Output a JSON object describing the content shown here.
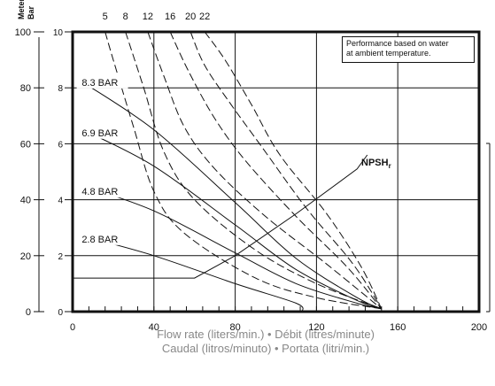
{
  "chart_data": {
    "type": "line",
    "xlabel": "Flow rate (liters/min.) • Débit (litres/minute)",
    "xlabel_2": "Caudal (litros/minuto) • Portata (litri/min.)",
    "left_axis_title": "Meters",
    "bar_axis_title": "Bar",
    "xlim": [
      0,
      200
    ],
    "ylim": [
      0,
      100
    ],
    "bar_lim": [
      0,
      10
    ],
    "x_ticks": [
      "0",
      "40",
      "80",
      "120",
      "160",
      "200"
    ],
    "y_ticks": [
      "0",
      "20",
      "40",
      "60",
      "80",
      "100"
    ],
    "bar_ticks": [
      "0",
      "2",
      "4",
      "6",
      "8",
      "10"
    ],
    "grid": true,
    "note": [
      "Performance based on water",
      "at ambient temperature."
    ],
    "series": [
      {
        "name": "8.3 BAR",
        "style": "solid",
        "label_y": 82,
        "points": [
          [
            5,
            82
          ],
          [
            40,
            65
          ],
          [
            80,
            39
          ],
          [
            110,
            19
          ],
          [
            140,
            5
          ],
          [
            152,
            1
          ]
        ]
      },
      {
        "name": "6.9 BAR",
        "style": "solid",
        "label_y": 64,
        "points": [
          [
            5,
            65
          ],
          [
            40,
            52
          ],
          [
            80,
            31
          ],
          [
            110,
            15
          ],
          [
            140,
            4
          ],
          [
            152,
            1
          ]
        ]
      },
      {
        "name": "4.8 BAR",
        "style": "solid",
        "label_y": 43,
        "points": [
          [
            5,
            45
          ],
          [
            40,
            36
          ],
          [
            80,
            21
          ],
          [
            110,
            10
          ],
          [
            140,
            3
          ],
          [
            152,
            1
          ]
        ]
      },
      {
        "name": "2.8 BAR",
        "style": "solid",
        "label_y": 26,
        "points": [
          [
            5,
            27
          ],
          [
            40,
            20
          ],
          [
            80,
            10
          ],
          [
            110,
            3
          ],
          [
            113,
            0
          ]
        ]
      },
      {
        "name": "NPSHr",
        "style": "solid",
        "points": [
          [
            0,
            12
          ],
          [
            60,
            12
          ],
          [
            80,
            20
          ],
          [
            110,
            35
          ],
          [
            140,
            51
          ],
          [
            145,
            56
          ]
        ]
      }
    ],
    "air_consumption_curves": [
      {
        "name": "5",
        "style": "dashed",
        "points": [
          [
            16,
            100
          ],
          [
            20,
            90
          ],
          [
            30,
            66
          ],
          [
            40,
            43
          ],
          [
            55,
            28
          ],
          [
            90,
            12
          ],
          [
            120,
            5
          ],
          [
            152,
            1
          ]
        ]
      },
      {
        "name": "8",
        "style": "dashed",
        "points": [
          [
            26,
            100
          ],
          [
            35,
            80
          ],
          [
            45,
            57
          ],
          [
            60,
            40
          ],
          [
            90,
            22
          ],
          [
            120,
            10
          ],
          [
            152,
            1
          ]
        ]
      },
      {
        "name": "12",
        "style": "dashed",
        "points": [
          [
            37,
            100
          ],
          [
            45,
            84
          ],
          [
            55,
            66
          ],
          [
            70,
            51
          ],
          [
            95,
            34
          ],
          [
            125,
            17
          ],
          [
            152,
            1
          ]
        ]
      },
      {
        "name": "16",
        "style": "dashed",
        "points": [
          [
            48,
            100
          ],
          [
            57,
            86
          ],
          [
            70,
            69
          ],
          [
            85,
            54
          ],
          [
            110,
            34
          ],
          [
            135,
            16
          ],
          [
            152,
            1
          ]
        ]
      },
      {
        "name": "20",
        "style": "dashed",
        "points": [
          [
            58,
            100
          ],
          [
            65,
            88
          ],
          [
            78,
            74
          ],
          [
            93,
            59
          ],
          [
            115,
            37
          ],
          [
            138,
            17
          ],
          [
            152,
            1
          ]
        ]
      },
      {
        "name": "22",
        "style": "dashed",
        "points": [
          [
            65,
            100
          ],
          [
            75,
            90
          ],
          [
            88,
            74
          ],
          [
            102,
            56
          ],
          [
            125,
            35
          ],
          [
            142,
            16
          ],
          [
            152,
            1
          ]
        ]
      }
    ]
  }
}
